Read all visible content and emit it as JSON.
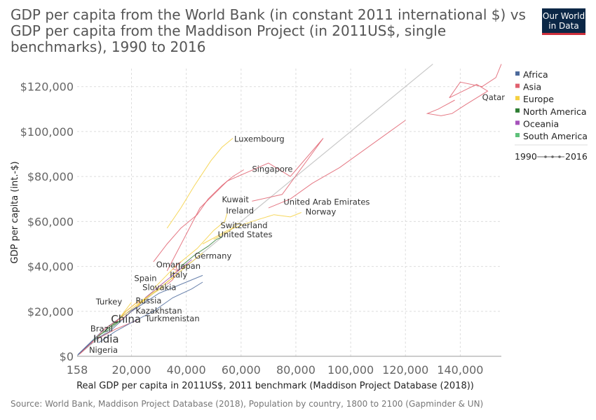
{
  "header": {
    "title": "GDP per capita from the World Bank (in constant 2011 international $) vs GDP per capita from the Maddison Project (in 2011US$, single benchmarks), 1990 to 2016",
    "logo_line1": "Our World",
    "logo_line2": "in Data"
  },
  "footer": {
    "source": "Source: World Bank, Maddison Project Database (2018), Population by country, 1800 to 2100 (Gapminder & UN)"
  },
  "colors": {
    "Africa": "#4c6a9c",
    "Asia": "#e0606e",
    "Europe": "#f5d040",
    "North America": "#2e7d32",
    "Oceania": "#a652ba",
    "South America": "#5ec07a",
    "reference": "#c8c8c8",
    "grid": "#dddddd"
  },
  "chart_data": {
    "type": "scatter",
    "title": "GDP per capita from the World Bank (in constant 2011 international $) vs GDP per capita from the Maddison Project (in 2011US$, single benchmarks), 1990 to 2016",
    "xlabel": "Real GDP per capita in 2011US$, 2011 benchmark (Maddison Project Database (2018))",
    "ylabel": "GDP per capita (int.-$)",
    "xlim": [
      158,
      155000
    ],
    "ylim": [
      0,
      128000
    ],
    "x_ticks": [
      {
        "value": 158,
        "label": "158"
      },
      {
        "value": 20000,
        "label": "20,000"
      },
      {
        "value": 40000,
        "label": "40,000"
      },
      {
        "value": 60000,
        "label": "60,000"
      },
      {
        "value": 80000,
        "label": "80,000"
      },
      {
        "value": 100000,
        "label": "100,000"
      },
      {
        "value": 120000,
        "label": "120,000"
      },
      {
        "value": 140000,
        "label": "140,000"
      }
    ],
    "y_ticks": [
      {
        "value": 0,
        "label": "$0"
      },
      {
        "value": 20000,
        "label": "$20,000"
      },
      {
        "value": 40000,
        "label": "$40,000"
      },
      {
        "value": 60000,
        "label": "$60,000"
      },
      {
        "value": 80000,
        "label": "$80,000"
      },
      {
        "value": 100000,
        "label": "$100,000"
      },
      {
        "value": 120000,
        "label": "$120,000"
      }
    ],
    "grid": true,
    "legend_placement": "right",
    "legend": [
      "Africa",
      "Asia",
      "Europe",
      "North America",
      "Oceania",
      "South America"
    ],
    "time_legend": {
      "start": "1990",
      "end": "2016"
    },
    "series": [
      {
        "name": "Qatar",
        "region": "Asia",
        "points": [
          [
            155000,
            130000
          ],
          [
            153000,
            124000
          ],
          [
            148000,
            120000
          ],
          [
            140000,
            122000
          ],
          [
            136000,
            115000
          ],
          [
            146000,
            121000
          ],
          [
            150000,
            118000
          ],
          [
            142000,
            112000
          ],
          [
            137000,
            108000
          ],
          [
            133000,
            107000
          ],
          [
            128000,
            108000
          ],
          [
            132000,
            110000
          ],
          [
            138000,
            114000
          ]
        ]
      },
      {
        "name": "Luxembourg",
        "region": "Europe",
        "points": [
          [
            33000,
            57000
          ],
          [
            38000,
            66000
          ],
          [
            43000,
            76000
          ],
          [
            49000,
            87000
          ],
          [
            53000,
            93000
          ],
          [
            57000,
            97000
          ]
        ]
      },
      {
        "name": "Singapore",
        "region": "Asia",
        "points": [
          [
            28000,
            42000
          ],
          [
            33000,
            50000
          ],
          [
            38000,
            57000
          ],
          [
            44000,
            63000
          ],
          [
            48000,
            70000
          ],
          [
            53000,
            76000
          ],
          [
            57000,
            80000
          ],
          [
            61000,
            83000
          ]
        ]
      },
      {
        "name": "Kuwait",
        "region": "Asia",
        "points": [
          [
            33000,
            38000
          ],
          [
            45000,
            66000
          ],
          [
            55000,
            78000
          ],
          [
            70000,
            86000
          ],
          [
            78000,
            80000
          ],
          [
            90000,
            97000
          ],
          [
            75000,
            72000
          ],
          [
            64000,
            69000
          ]
        ]
      },
      {
        "name": "United Arab Emirates",
        "region": "Asia",
        "points": [
          [
            120000,
            105000
          ],
          [
            112000,
            98000
          ],
          [
            96000,
            84000
          ],
          [
            86000,
            77000
          ],
          [
            78000,
            70000
          ],
          [
            70000,
            66000
          ]
        ]
      },
      {
        "name": "Norway",
        "region": "Europe",
        "points": [
          [
            46000,
            50000
          ],
          [
            55000,
            56000
          ],
          [
            64000,
            60000
          ],
          [
            72000,
            63000
          ],
          [
            78000,
            62000
          ],
          [
            82000,
            64000
          ]
        ]
      },
      {
        "name": "Ireland",
        "region": "Europe",
        "points": [
          [
            28000,
            30000
          ],
          [
            36000,
            40000
          ],
          [
            44000,
            48000
          ],
          [
            50000,
            56000
          ],
          [
            54000,
            60000
          ],
          [
            55000,
            64000
          ]
        ]
      },
      {
        "name": "Switzerland",
        "region": "Europe",
        "points": [
          [
            50000,
            52000
          ],
          [
            53000,
            54000
          ],
          [
            56000,
            56000
          ],
          [
            58000,
            59000
          ],
          [
            60000,
            59000
          ]
        ]
      },
      {
        "name": "United States",
        "region": "North America",
        "points": [
          [
            38000,
            40000
          ],
          [
            43000,
            45000
          ],
          [
            48000,
            49000
          ],
          [
            51000,
            52000
          ],
          [
            53000,
            53000
          ]
        ]
      },
      {
        "name": "Germany",
        "region": "Europe",
        "points": [
          [
            34000,
            36000
          ],
          [
            38000,
            39000
          ],
          [
            42000,
            42000
          ],
          [
            45000,
            45000
          ],
          [
            46000,
            46000
          ]
        ]
      },
      {
        "name": "Oman",
        "region": "Asia",
        "points": [
          [
            38000,
            42000
          ],
          [
            36000,
            40000
          ],
          [
            37000,
            38000
          ],
          [
            35000,
            39000
          ]
        ]
      },
      {
        "name": "Japan",
        "region": "Asia",
        "points": [
          [
            33000,
            32000
          ],
          [
            35000,
            34000
          ],
          [
            36000,
            36000
          ],
          [
            37000,
            37000
          ]
        ]
      },
      {
        "name": "Italy",
        "region": "Europe",
        "points": [
          [
            32000,
            32000
          ],
          [
            34000,
            34000
          ],
          [
            35000,
            35000
          ],
          [
            35000,
            34000
          ]
        ]
      },
      {
        "name": "Spain",
        "region": "Europe",
        "points": [
          [
            24000,
            24000
          ],
          [
            28000,
            29000
          ],
          [
            31000,
            32000
          ],
          [
            32000,
            33000
          ]
        ]
      },
      {
        "name": "Slovakia",
        "region": "Europe",
        "points": [
          [
            14000,
            14000
          ],
          [
            20000,
            20000
          ],
          [
            25000,
            26000
          ],
          [
            28000,
            29000
          ]
        ]
      },
      {
        "name": "Turkey",
        "region": "Asia",
        "points": [
          [
            13000,
            14000
          ],
          [
            15000,
            16000
          ],
          [
            18000,
            20000
          ],
          [
            22000,
            24000
          ],
          [
            24000,
            24000
          ]
        ]
      },
      {
        "name": "Russia",
        "region": "Europe",
        "points": [
          [
            20000,
            24000
          ],
          [
            15000,
            16000
          ],
          [
            18000,
            20000
          ],
          [
            23000,
            25000
          ],
          [
            24000,
            24000
          ]
        ]
      },
      {
        "name": "Kazakhstan",
        "region": "Asia",
        "points": [
          [
            12000,
            12000
          ],
          [
            16000,
            16000
          ],
          [
            20000,
            20000
          ],
          [
            23000,
            23000
          ]
        ]
      },
      {
        "name": "Turkmenistan",
        "region": "Asia",
        "points": [
          [
            8000,
            8000
          ],
          [
            14000,
            12000
          ],
          [
            20000,
            15000
          ],
          [
            22000,
            16000
          ]
        ]
      },
      {
        "name": "China",
        "region": "Asia",
        "points": [
          [
            1500,
            1500
          ],
          [
            4000,
            4500
          ],
          [
            8000,
            9000
          ],
          [
            12000,
            13000
          ],
          [
            14000,
            15000
          ]
        ]
      },
      {
        "name": "Brazil",
        "region": "South America",
        "points": [
          [
            10000,
            11000
          ],
          [
            11000,
            12000
          ],
          [
            13000,
            14000
          ],
          [
            14000,
            15000
          ]
        ]
      },
      {
        "name": "India",
        "region": "Asia",
        "points": [
          [
            1500,
            2000
          ],
          [
            3000,
            3500
          ],
          [
            4500,
            5000
          ],
          [
            6000,
            6500
          ]
        ]
      },
      {
        "name": "Nigeria",
        "region": "Africa",
        "points": [
          [
            3000,
            3500
          ],
          [
            4000,
            4500
          ],
          [
            5000,
            5500
          ],
          [
            5500,
            5800
          ]
        ]
      },
      {
        "name": "",
        "region": "Africa",
        "points": [
          [
            300,
            500
          ],
          [
            2000,
            2500
          ],
          [
            6000,
            7000
          ],
          [
            12000,
            11000
          ],
          [
            20000,
            20000
          ],
          [
            30000,
            28000
          ],
          [
            40000,
            33000
          ],
          [
            46000,
            36000
          ]
        ]
      },
      {
        "name": "",
        "region": "Africa",
        "points": [
          [
            500,
            800
          ],
          [
            4000,
            5000
          ],
          [
            10000,
            12000
          ],
          [
            18000,
            19000
          ],
          [
            22000,
            22000
          ]
        ]
      },
      {
        "name": "",
        "region": "Asia",
        "points": [
          [
            1000,
            900
          ],
          [
            5000,
            5500
          ],
          [
            10000,
            12000
          ],
          [
            16000,
            17000
          ]
        ]
      },
      {
        "name": "",
        "region": "Europe",
        "points": [
          [
            16000,
            17000
          ],
          [
            22000,
            23000
          ],
          [
            28000,
            28000
          ],
          [
            32000,
            31000
          ]
        ]
      },
      {
        "name": "",
        "region": "Europe",
        "points": [
          [
            22000,
            22000
          ],
          [
            26000,
            27000
          ],
          [
            30000,
            30000
          ],
          [
            36000,
            36000
          ],
          [
            40000,
            40000
          ]
        ]
      },
      {
        "name": "",
        "region": "South America",
        "points": [
          [
            6000,
            7000
          ],
          [
            9000,
            10000
          ],
          [
            12000,
            12000
          ],
          [
            16000,
            16000
          ]
        ]
      },
      {
        "name": "",
        "region": "North America",
        "points": [
          [
            8000,
            9000
          ],
          [
            12000,
            13000
          ],
          [
            16000,
            16000
          ]
        ]
      },
      {
        "name": "",
        "region": "Oceania",
        "points": [
          [
            25000,
            26000
          ],
          [
            32000,
            33000
          ],
          [
            38000,
            39000
          ],
          [
            42000,
            43000
          ]
        ]
      },
      {
        "name": "",
        "region": "Africa",
        "points": [
          [
            8000,
            6000
          ],
          [
            14000,
            11000
          ],
          [
            20000,
            15000
          ],
          [
            28000,
            20000
          ],
          [
            35000,
            26000
          ],
          [
            42000,
            30000
          ],
          [
            46000,
            33000
          ]
        ]
      }
    ],
    "labels": [
      {
        "text": "Qatar",
        "x": 148000,
        "y": 114000,
        "size": "small"
      },
      {
        "text": "Luxembourg",
        "x": 57500,
        "y": 95500,
        "size": "small"
      },
      {
        "text": "Singapore",
        "x": 64000,
        "y": 82000,
        "size": "small"
      },
      {
        "text": "Kuwait",
        "x": 53000,
        "y": 68500,
        "size": "small"
      },
      {
        "text": "United Arab Emirates",
        "x": 75500,
        "y": 67500,
        "size": "small"
      },
      {
        "text": "Ireland",
        "x": 54500,
        "y": 63500,
        "size": "small"
      },
      {
        "text": "Norway",
        "x": 83500,
        "y": 63000,
        "size": "small"
      },
      {
        "text": "Switzerland",
        "x": 52500,
        "y": 57000,
        "size": "small"
      },
      {
        "text": "United States",
        "x": 51500,
        "y": 53000,
        "size": "small"
      },
      {
        "text": "Germany",
        "x": 43000,
        "y": 43500,
        "size": "small"
      },
      {
        "text": "Oman",
        "x": 29000,
        "y": 39500,
        "size": "small"
      },
      {
        "text": "Japan",
        "x": 37000,
        "y": 39000,
        "size": "small"
      },
      {
        "text": "Italy",
        "x": 34000,
        "y": 35000,
        "size": "small"
      },
      {
        "text": "Spain",
        "x": 21000,
        "y": 33500,
        "size": "small"
      },
      {
        "text": "Slovakia",
        "x": 24000,
        "y": 29500,
        "size": "small"
      },
      {
        "text": "Turkey",
        "x": 7000,
        "y": 23000,
        "size": "small"
      },
      {
        "text": "Russia",
        "x": 21500,
        "y": 23500,
        "size": "small"
      },
      {
        "text": "Kazakhstan",
        "x": 21500,
        "y": 19000,
        "size": "small"
      },
      {
        "text": "Turkmenistan",
        "x": 25000,
        "y": 15500,
        "size": "small"
      },
      {
        "text": "China",
        "x": 12500,
        "y": 15000,
        "size": "large"
      },
      {
        "text": "Brazil",
        "x": 5000,
        "y": 11000,
        "size": "small"
      },
      {
        "text": "India",
        "x": 6000,
        "y": 6000,
        "size": "large"
      },
      {
        "text": "Nigeria",
        "x": 4500,
        "y": 1500,
        "size": "small"
      }
    ]
  }
}
